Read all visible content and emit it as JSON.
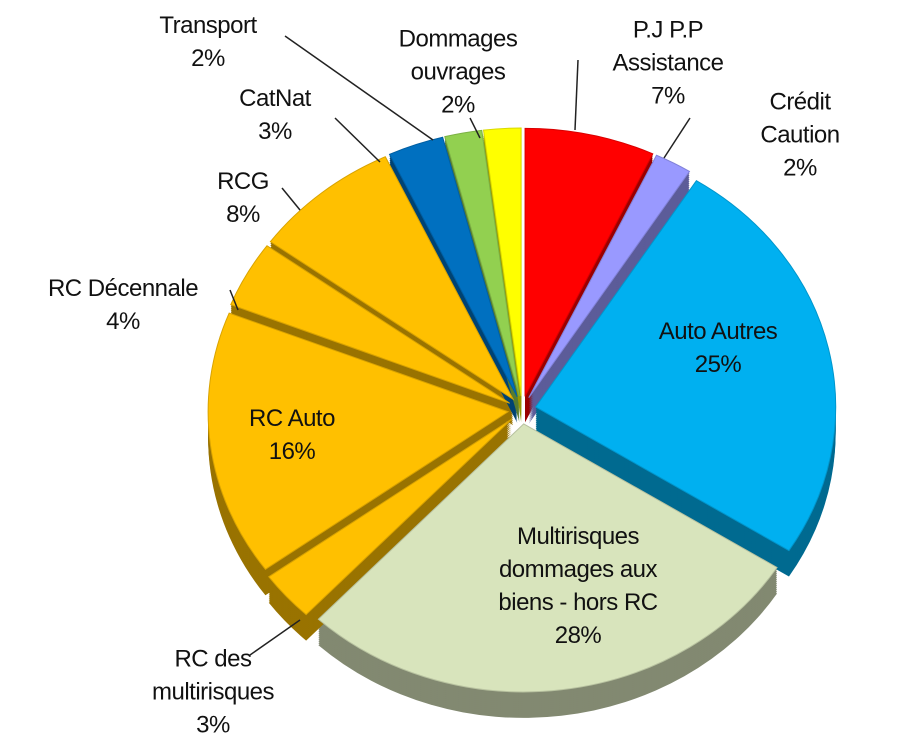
{
  "chart_data": {
    "type": "pie",
    "categories": [
      "P.J P.P\nAssistance",
      "Crédit Caution",
      "Auto Autres",
      "Multirisques\ndommages aux\nbiens - hors RC",
      "RC des\nmultirisques",
      "RC Auto",
      "RC Décennale",
      "RCG",
      "CatNat",
      "Transport",
      "Dommages\nouvrages"
    ],
    "values": [
      7,
      2,
      25,
      28,
      3,
      16,
      4,
      8,
      3,
      2,
      2
    ],
    "value_labels": [
      "7%",
      "2%",
      "25%",
      "28%",
      "3%",
      "16%",
      "4%",
      "8%",
      "3%",
      "2%",
      "2%"
    ],
    "colors": [
      "#ff0000",
      "#9999ff",
      "#00b0f0",
      "#d8e4bc",
      "#ffc000",
      "#ffc000",
      "#ffc000",
      "#ffc000",
      "#0070c0",
      "#92d050",
      "#ffff00"
    ]
  }
}
